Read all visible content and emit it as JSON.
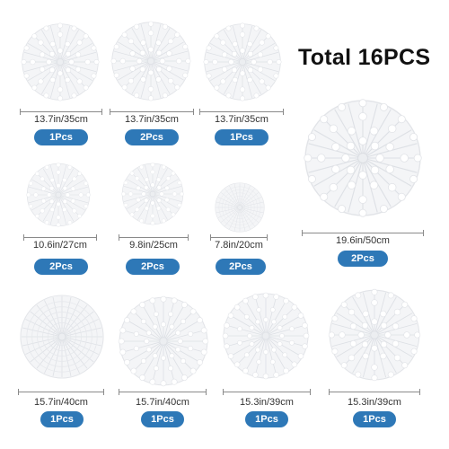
{
  "headline": "Total 16PCS",
  "badge_color": "#2E78B7",
  "items": [
    {
      "size": "13.7in/35cm",
      "qty": "1Pcs",
      "style": "snowflake"
    },
    {
      "size": "13.7in/35cm",
      "qty": "2Pcs",
      "style": "snowflake"
    },
    {
      "size": "13.7in/35cm",
      "qty": "1Pcs",
      "style": "snowflake"
    },
    {
      "size": "19.6in/50cm",
      "qty": "2Pcs",
      "style": "snowflake"
    },
    {
      "size": "10.6in/27cm",
      "qty": "2Pcs",
      "style": "snowflake"
    },
    {
      "size": "9.8in/25cm",
      "qty": "2Pcs",
      "style": "snowflake"
    },
    {
      "size": "7.8in/20cm",
      "qty": "2Pcs",
      "style": "honeycomb"
    },
    {
      "size": "15.7in/40cm",
      "qty": "1Pcs",
      "style": "honeycomb"
    },
    {
      "size": "15.7in/40cm",
      "qty": "1Pcs",
      "style": "sunburst"
    },
    {
      "size": "15.3in/39cm",
      "qty": "1Pcs",
      "style": "sunburst"
    },
    {
      "size": "15.3in/39cm",
      "qty": "1Pcs",
      "style": "snowflake"
    }
  ]
}
